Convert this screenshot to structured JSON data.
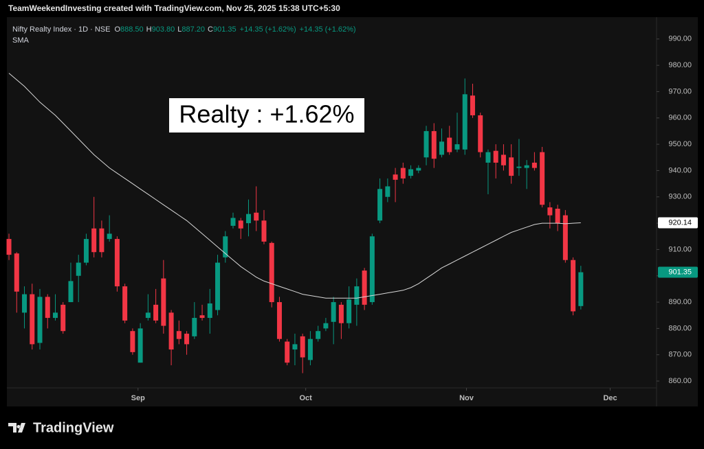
{
  "chart_data": {
    "type": "candlestick",
    "watermark": "TeamWeekendInvesting created with TradingView.com, Nov 25, 2025 15:38 UTC+5:30",
    "symbol": "Nifty Realty Index · 1D · NSE",
    "legend_ohlc": [
      [
        "O",
        "888.50"
      ],
      [
        "H",
        "903.80"
      ],
      [
        "L",
        "887.20"
      ],
      [
        "C",
        "901.35"
      ]
    ],
    "legend_change": [
      "+14.35 (+1.62%)",
      "+14.35 (+1.62%)"
    ],
    "annotation": "Realty : +1.62%",
    "logo": "TradingView",
    "up_color": "#089981",
    "down_color": "#f23645",
    "ohlc": {
      "open": [
        914,
        908.5,
        886,
        893,
        874.5,
        892,
        884,
        889,
        890,
        900,
        905,
        918,
        918,
        914,
        914,
        896,
        879,
        867,
        884,
        889,
        899,
        886,
        879,
        878,
        877,
        885,
        884,
        887,
        907,
        919,
        921,
        920,
        924,
        921,
        912.5,
        890,
        875,
        872,
        877,
        868,
        876,
        880,
        882.5,
        889,
        882,
        889,
        902,
        890,
        921,
        930,
        938.5,
        941,
        938,
        940,
        945,
        955,
        946,
        952.5,
        948,
        948,
        968.5,
        961,
        943,
        947.5,
        946,
        945,
        941,
        941,
        943,
        947,
        926,
        925.5,
        923,
        906,
        888.5
      ],
      "high": [
        916,
        909,
        896,
        897,
        895,
        893,
        893,
        890,
        905,
        908,
        916,
        930,
        921,
        923,
        915,
        897,
        880,
        882,
        893,
        895,
        906,
        887,
        883,
        879,
        890,
        889,
        895,
        908,
        917,
        924,
        922,
        929,
        934,
        925,
        913,
        892,
        876,
        878,
        878,
        879,
        881,
        884,
        892,
        890,
        896,
        899,
        903,
        916,
        937,
        937,
        941,
        943,
        942,
        942,
        957,
        958,
        956,
        957,
        962,
        975,
        973,
        962,
        948,
        950,
        950,
        950,
        952,
        944,
        947,
        949,
        928,
        927,
        925,
        907,
        903.8
      ],
      "low": [
        906,
        886,
        880,
        872,
        872,
        880,
        883,
        878,
        890,
        890,
        904,
        907,
        907,
        913,
        894,
        882,
        870,
        867,
        883,
        882,
        878,
        866,
        874,
        870,
        876,
        883,
        878,
        885,
        905,
        918,
        914,
        915,
        917,
        912,
        888,
        875,
        866,
        866,
        863,
        866,
        875,
        879,
        874,
        876,
        880,
        881,
        887,
        889,
        920,
        928,
        928,
        935,
        937,
        939,
        942,
        941,
        945,
        946,
        947,
        946,
        960,
        945,
        931,
        937,
        940,
        935,
        938,
        933,
        940,
        926,
        918,
        917,
        905,
        885,
        887.2
      ],
      "close": [
        908,
        894,
        893,
        874,
        892,
        884,
        886,
        879,
        898,
        905,
        914,
        909,
        909,
        916,
        896,
        883,
        871,
        880,
        886,
        883,
        881,
        872,
        876,
        874,
        884,
        884,
        889.5,
        905,
        915,
        922,
        918,
        923.5,
        921,
        913,
        890,
        876,
        867,
        874,
        869,
        876,
        879,
        882,
        890,
        882,
        891,
        896,
        889,
        915,
        933,
        934,
        936.5,
        937,
        940.5,
        941,
        955,
        944.5,
        951,
        947,
        950,
        969,
        961,
        947,
        947,
        943,
        942,
        938,
        941.5,
        942,
        941,
        927,
        923,
        920,
        906,
        886.5,
        901.35
      ]
    },
    "sma": {
      "label": "SMA",
      "color": "#d9d9d9",
      "values": [
        977,
        974.5,
        972,
        969,
        966,
        963.5,
        961,
        958,
        955,
        952,
        949,
        946,
        943.5,
        941,
        939,
        937,
        935,
        933,
        931,
        929,
        927,
        925,
        923,
        921,
        918.5,
        916,
        913.5,
        911,
        908.5,
        906,
        903.5,
        901.5,
        899.5,
        898,
        897,
        896,
        895,
        894,
        893,
        892.5,
        892,
        891.5,
        891.5,
        891.5,
        891.5,
        891.5,
        892,
        892.5,
        893,
        893.5,
        894,
        894.5,
        895.5,
        897,
        899,
        901,
        903,
        904.5,
        906,
        907.5,
        909,
        910.5,
        912,
        913.5,
        915,
        916.5,
        917.5,
        918.5,
        919.5,
        920,
        920,
        920,
        919.8,
        920,
        920.14
      ]
    },
    "xlim": [
      -0.27,
      83.8
    ],
    "xticks": [
      {
        "value": 16.7,
        "label": "Sep"
      },
      {
        "value": 38.4,
        "label": "Oct"
      },
      {
        "value": 59.2,
        "label": "Nov"
      },
      {
        "value": 77.8,
        "label": "Dec"
      }
    ],
    "ylim": [
      857.4,
      998.3
    ],
    "yticks": [
      {
        "value": 860,
        "label": "860.00"
      },
      {
        "value": 870,
        "label": "870.00"
      },
      {
        "value": 880,
        "label": "880.00"
      },
      {
        "value": 890,
        "label": "890.00"
      },
      {
        "value": 900,
        "label": "900.00"
      },
      {
        "value": 910,
        "label": "910.00"
      },
      {
        "value": 920,
        "label": "920.00"
      },
      {
        "value": 930,
        "label": "930.00"
      },
      {
        "value": 940,
        "label": "940.00"
      },
      {
        "value": 950,
        "label": "950.00"
      },
      {
        "value": 960,
        "label": "960.00"
      },
      {
        "value": 970,
        "label": "970.00"
      },
      {
        "value": 980,
        "label": "980.00"
      },
      {
        "value": 990,
        "label": "990.00"
      }
    ]
  }
}
